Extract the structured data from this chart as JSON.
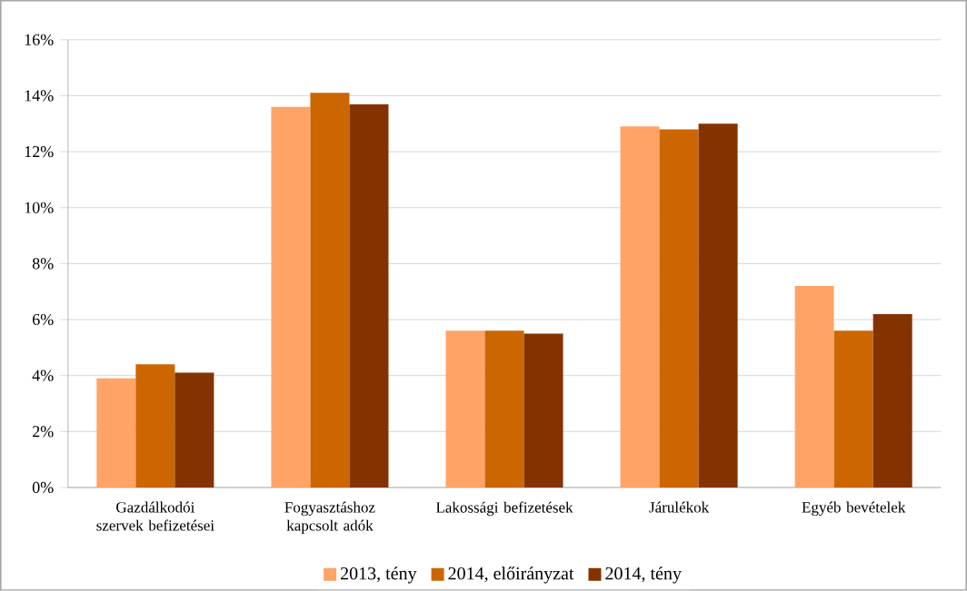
{
  "chart_data": {
    "type": "bar",
    "categories": [
      "Gazdálkodói szervek befizetései",
      "Fogyasztáshoz kapcsolt adók",
      "Lakossági befizetések",
      "Járulékok",
      "Egyéb bevételek"
    ],
    "series": [
      {
        "name": "2013, tény",
        "color": "#ffa366",
        "values": [
          3.9,
          13.6,
          5.6,
          12.9,
          7.2
        ]
      },
      {
        "name": "2014, előirányzat",
        "color": "#cc6600",
        "values": [
          4.4,
          14.1,
          5.6,
          12.8,
          5.6
        ]
      },
      {
        "name": "2014, tény",
        "color": "#843300",
        "values": [
          4.1,
          13.7,
          5.5,
          13.0,
          6.2
        ]
      }
    ],
    "ylim": [
      0,
      16
    ],
    "yticks": [
      {
        "value": 0,
        "label": "0%"
      },
      {
        "value": 2,
        "label": "2%"
      },
      {
        "value": 4,
        "label": "4%"
      },
      {
        "value": 6,
        "label": "6%"
      },
      {
        "value": 8,
        "label": "8%"
      },
      {
        "value": 10,
        "label": "10%"
      },
      {
        "value": 12,
        "label": "12%"
      },
      {
        "value": 14,
        "label": "14%"
      },
      {
        "value": 16,
        "label": "16%"
      }
    ],
    "grid": "y",
    "legend": "bottom"
  }
}
